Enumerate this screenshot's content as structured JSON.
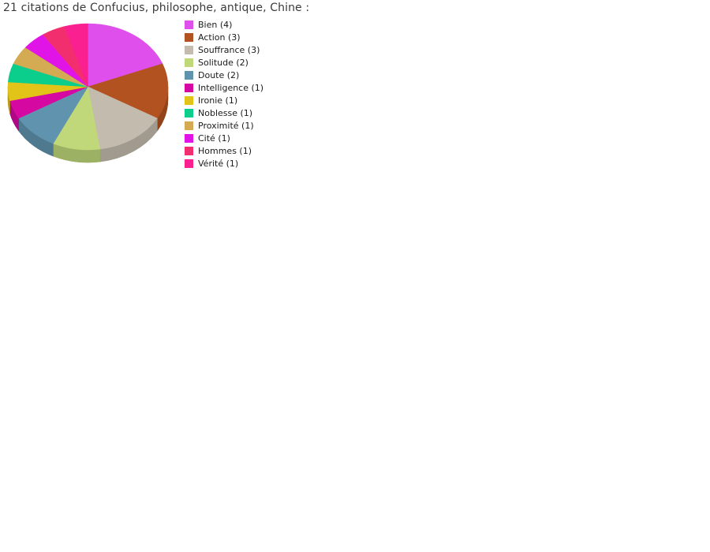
{
  "header": {
    "title": "21 citations de Confucius, philosophe, antique, Chine :"
  },
  "chart_data": {
    "type": "pie",
    "title": "21 citations de Confucius, philosophe, antique, Chine :",
    "total": 21,
    "start_angle_deg": -90,
    "direction": "clockwise",
    "effect_3d": true,
    "legend_position": "right",
    "categories": [
      "Bien",
      "Action",
      "Souffrance",
      "Solitude",
      "Doute",
      "Intelligence",
      "Ironie",
      "Noblesse",
      "Proximité",
      "Cité",
      "Hommes",
      "Vérité"
    ],
    "values": [
      4,
      3,
      3,
      2,
      2,
      1,
      1,
      1,
      1,
      1,
      1,
      1
    ],
    "colors": [
      "#DF4FEC",
      "#B25220",
      "#C3BCAE",
      "#C0D87A",
      "#6093AE",
      "#D509A2",
      "#E2C318",
      "#0BCE8C",
      "#D4AA52",
      "#E114E7",
      "#F22E6F",
      "#FA2090"
    ],
    "legend": [
      {
        "label": "Bien (4)"
      },
      {
        "label": "Action (3)"
      },
      {
        "label": "Souffrance (3)"
      },
      {
        "label": "Solitude (2)"
      },
      {
        "label": "Doute (2)"
      },
      {
        "label": "Intelligence (1)"
      },
      {
        "label": "Ironie (1)"
      },
      {
        "label": "Noblesse (1)"
      },
      {
        "label": "Proximité (1)"
      },
      {
        "label": "Cité (1)"
      },
      {
        "label": "Hommes (1)"
      },
      {
        "label": "Vérité (1)"
      }
    ]
  }
}
